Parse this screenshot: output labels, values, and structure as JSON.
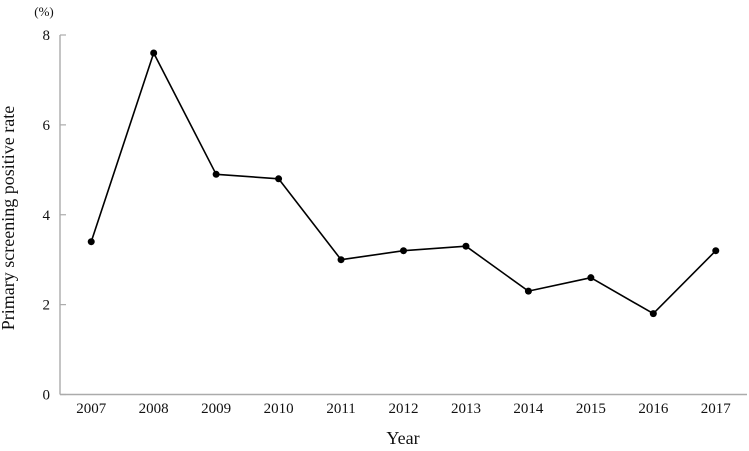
{
  "chart_data": {
    "type": "line",
    "title": "",
    "unit_label": "(%)",
    "xlabel": "Year",
    "ylabel": "Primary screening positive rate",
    "categories": [
      "2007",
      "2008",
      "2009",
      "2010",
      "2011",
      "2012",
      "2013",
      "2014",
      "2015",
      "2016",
      "2017"
    ],
    "series": [
      {
        "name": "Primary screening positive rate",
        "values": [
          3.4,
          7.6,
          4.9,
          4.8,
          3.0,
          3.2,
          3.3,
          2.3,
          2.6,
          1.8,
          3.2
        ]
      }
    ],
    "ylim": [
      0,
      8
    ],
    "yticks": [
      0,
      2,
      4,
      6,
      8
    ],
    "grid": false,
    "legend_position": "none",
    "marker": "filled-circle",
    "colors": {
      "line": "#000000",
      "marker": "#000000",
      "axis": "#ababab",
      "text": "#111111",
      "background": "#ffffff"
    }
  }
}
